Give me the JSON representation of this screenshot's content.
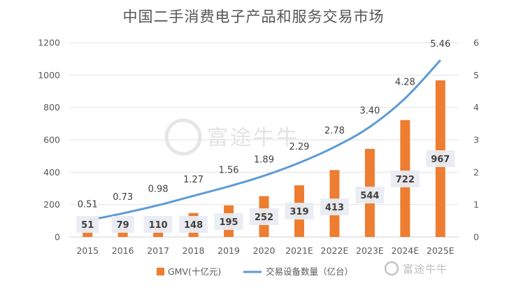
{
  "chart_data": {
    "type": "bar+line",
    "title": "中国二手消费电子产品和服务交易市场",
    "categories": [
      "2015",
      "2016",
      "2017",
      "2018",
      "2019",
      "2020",
      "2021E",
      "2022E",
      "2023E",
      "2024E",
      "2025E"
    ],
    "series": [
      {
        "name": "GMV(十亿元)",
        "type": "bar",
        "axis": "left",
        "color": "#ed7d31",
        "values": [
          51,
          79,
          110,
          148,
          195,
          252,
          319,
          413,
          544,
          722,
          967
        ]
      },
      {
        "name": "交易设备数量（亿台）",
        "type": "line",
        "axis": "right",
        "color": "#5b9bd5",
        "values": [
          0.51,
          0.73,
          0.98,
          1.27,
          1.56,
          1.89,
          2.29,
          2.78,
          3.4,
          4.28,
          5.46
        ],
        "labels": [
          "0.51",
          "0.73",
          "0.98",
          "1.27",
          "1.56",
          "1.89",
          "2.29",
          "2.78",
          "3.40",
          "4.28",
          "5.46"
        ]
      }
    ],
    "y_left": {
      "min": 0,
      "max": 1200,
      "ticks": [
        0,
        200,
        400,
        600,
        800,
        1000,
        1200
      ]
    },
    "y_right": {
      "min": 0,
      "max": 6,
      "ticks": [
        0,
        1,
        2,
        3,
        4,
        5,
        6
      ]
    },
    "grid": true,
    "legend": "bottom"
  },
  "watermark": {
    "text": "富途牛牛"
  }
}
